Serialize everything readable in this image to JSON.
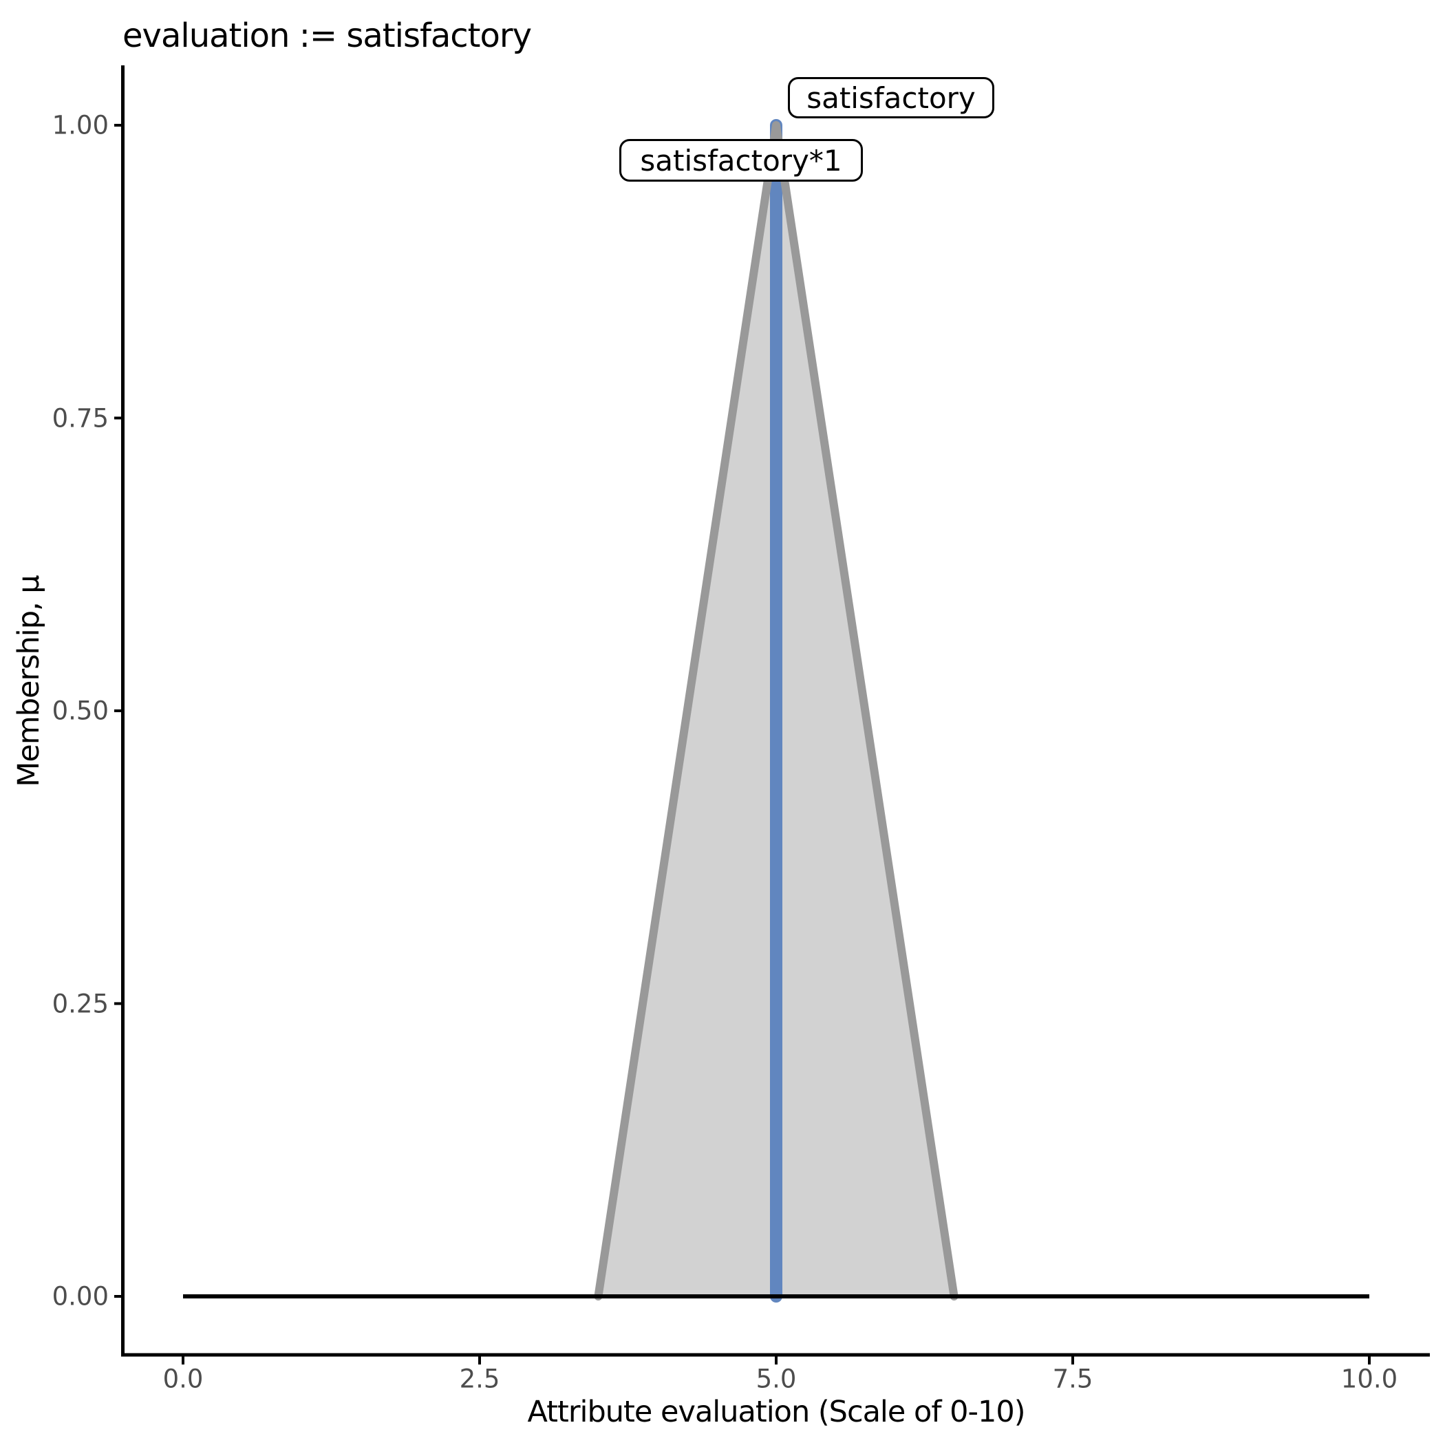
{
  "title": "evaluation := satisfactory",
  "chart_data": {
    "type": "area",
    "title": "evaluation := satisfactory",
    "xlabel": "Attribute evaluation (Scale of 0-10)",
    "ylabel": "Membership, μ",
    "xlim": [
      -0.5,
      10.5
    ],
    "ylim": [
      0,
      1.0
    ],
    "grid": false,
    "legend_position": "none",
    "x_ticks": {
      "values": [
        0,
        2.5,
        5,
        7.5,
        10
      ],
      "labels": [
        "0.0",
        "2.5",
        "5.0",
        "7.5",
        "10.0"
      ]
    },
    "y_ticks": {
      "values": [
        0,
        0.25,
        0.5,
        0.75,
        1
      ],
      "labels": [
        "0.00",
        "0.25",
        "0.50",
        "0.75",
        "1.00"
      ]
    },
    "series": [
      {
        "name": "universe-baseline",
        "type": "line",
        "color": "#000000",
        "points": [
          [
            0,
            0
          ],
          [
            10,
            0
          ]
        ]
      },
      {
        "name": "satisfactory-membership-function",
        "type": "area",
        "fill": "#D2D2D2",
        "stroke": "#999999",
        "points": [
          [
            3.5,
            0
          ],
          [
            5,
            1
          ],
          [
            6.5,
            0
          ]
        ]
      },
      {
        "name": "satisfactory-scaled-cut",
        "type": "vline",
        "color": "#6186BF",
        "x": 5,
        "y0": 0,
        "y1": 1
      }
    ],
    "annotations": [
      {
        "text": "satisfactory",
        "x": 5,
        "y": 1
      },
      {
        "text": "satisfactory*1",
        "x": 5,
        "y": 0.97
      }
    ],
    "colors": {
      "axis": "#000000",
      "tick_text": "#4d4d4d",
      "mf_fill": "#D2D2D2",
      "mf_outline": "#999999",
      "cut_line": "#6186BF",
      "baseline": "#000000",
      "label_box_bg": "#ffffff",
      "label_box_border": "#000000"
    }
  }
}
